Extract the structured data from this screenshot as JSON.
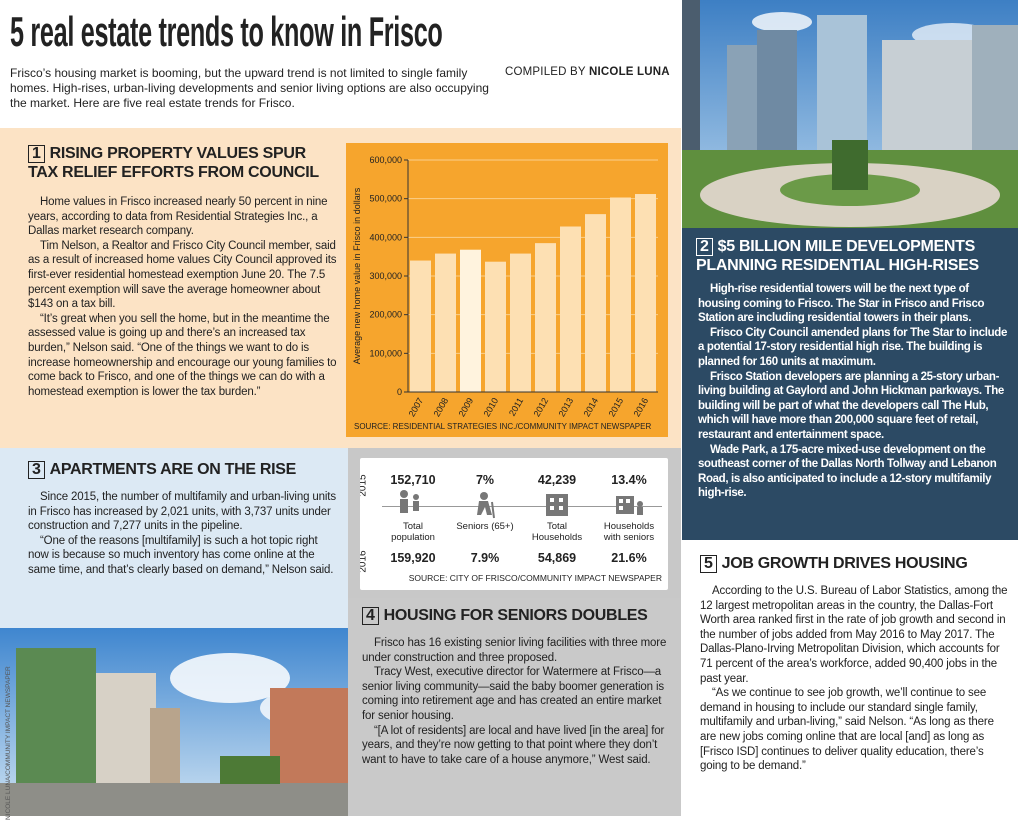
{
  "header": {
    "title": "5 real estate trends to know in Frisco",
    "intro": "Frisco’s housing market is booming, but the upward trend is not limited to single family homes. High-rises, urban-living developments and senior living options are also occupying the market. Here are five real estate trends for Frisco.",
    "compiled_by": "COMPILED BY",
    "author": "NICOLE LUNA"
  },
  "sections": [
    {
      "number": "1",
      "heading": "RISING PROPERTY VALUES SPUR TAX RELIEF EFFORTS FROM COUNCIL",
      "paragraphs": [
        "Home values in Frisco increased nearly 50 percent in nine years, according to data from Residential Strategies Inc., a Dallas market research company.",
        "Tim Nelson, a Realtor and Frisco City Council member, said as a result of increased home values City Council approved its first-ever residential homestead exemption June 20. The 7.5 percent exemption will save the average homeowner about $143 on a tax bill.",
        "“It’s great when you sell the home, but in the meantime the assessed value is going up and there’s an increased tax burden,” Nelson said. “One of the things we want to do is increase homeownership and encourage our young families to come back to Frisco, and one of the things we can do with a homestead exemption is lower the tax burden.”"
      ]
    },
    {
      "number": "2",
      "heading": "$5 BILLION MILE DEVELOPMENTS PLANNING RESIDENTIAL HIGH-RISES",
      "paragraphs": [
        "High-rise residential towers will be the next type of housing coming to Frisco. The Star in Frisco and Frisco Station are including residential towers in their plans.",
        "Frisco City Council amended plans for The Star to include a potential 17-story residential high rise. The building is planned for 160 units at maximum.",
        "Frisco Station developers are planning a 25-story urban-living building at Gaylord and John Hickman parkways. The building will be part of what the developers call The Hub, which will have more than 200,000 square feet of retail, restaurant and entertainment space.",
        "Wade Park, a 175-acre mixed-use development on the southeast corner of the Dallas North Tollway and Lebanon Road, is also anticipated to include a 12-story multifamily high-rise."
      ]
    },
    {
      "number": "3",
      "heading": "APARTMENTS ARE ON THE RISE",
      "paragraphs": [
        "Since 2015, the number of multifamily and urban-living units in Frisco has increased by 2,021 units, with 3,737 units under construction and 7,277 units in the pipeline.",
        "“One of the reasons [multifamily] is such a hot topic right now is because so much inventory has come online at the same time, and that’s clearly based on demand,” Nelson said."
      ]
    },
    {
      "number": "4",
      "heading": "HOUSING FOR SENIORS DOUBLES",
      "paragraphs": [
        "Frisco has 16 existing senior living facilities with three more under construction and three proposed.",
        "Tracy West, executive director for Watermere at Frisco—a senior living community—said the baby boomer generation is coming into retirement age and has created an entire market for senior housing.",
        "“[A lot of residents] are local and have lived [in the area] for years, and they’re now getting to that point where they don’t want to have to take care of a house anymore,” West said."
      ]
    },
    {
      "number": "5",
      "heading": "JOB GROWTH DRIVES HOUSING",
      "paragraphs": [
        "According to the U.S. Bureau of Labor Statistics, among the 12 largest metropolitan areas in the country, the Dallas-Fort Worth area ranked first in the rate of job growth and second in the number of jobs added from May 2016 to May 2017. The Dallas-Plano-Irving Metropolitan Division, which accounts for 71 percent of the area’s workforce, added 90,400 jobs in the past year.",
        "“As we continue to see job growth, we’ll continue to see demand in housing to include our standard single family, multifamily and urban-living,” said Nelson. “As long as there are new jobs coming online that are local [and] as long as [Frisco ISD] continues to deliver quality education, there’s going to be demand.”"
      ]
    }
  ],
  "chart_data": {
    "type": "bar",
    "y_label": "Average new home value in Frisco in dollars",
    "source": "SOURCE: RESIDENTIAL STRATEGIES INC./COMMUNITY IMPACT NEWSPAPER",
    "categories": [
      "2007",
      "2008",
      "2009",
      "2010",
      "2011",
      "2012",
      "2013",
      "2014",
      "2015",
      "2016"
    ],
    "values": [
      340000,
      358000,
      368000,
      337000,
      358000,
      385000,
      428000,
      460000,
      503000,
      512000
    ],
    "colors": [
      "#fde0b3",
      "#fde0b3",
      "#fff3de",
      "#fde0b3",
      "#fde0b3",
      "#fde0b3",
      "#fde0b3",
      "#fde0b3",
      "#fde0b3",
      "#fde0b3"
    ],
    "ylim": [
      0,
      600000
    ],
    "yticks": [
      0,
      {
        "value": 100000,
        "label": "100,000"
      },
      {
        "value": 200000,
        "label": "200,000"
      },
      {
        "value": 300000,
        "label": "300,000"
      },
      {
        "value": 400000,
        "label": "400,000"
      },
      {
        "value": 500000,
        "label": "500,000"
      },
      {
        "value": 600000,
        "label": "600,000"
      }
    ],
    "grid": true
  },
  "stats": {
    "year_a": "2015",
    "year_b": "2016",
    "columns": [
      {
        "label": "Total population",
        "a": "152,710",
        "b": "159,920"
      },
      {
        "label": "Seniors (65+)",
        "a": "7%",
        "b": "7.9%"
      },
      {
        "label": "Total Households",
        "a": "42,239",
        "b": "54,869"
      },
      {
        "label": "Households with seniors",
        "a": "13.4%",
        "b": "21.6%"
      }
    ],
    "source": "SOURCE: CITY OF FRISCO/COMMUNITY IMPACT NEWSPAPER"
  },
  "photo_credit": "NICOLE LUNA/COMMUNITY IMPACT NEWSPAPER"
}
